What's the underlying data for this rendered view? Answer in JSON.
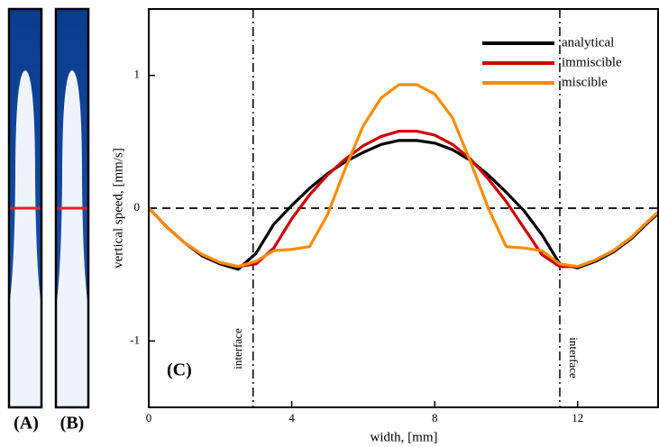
{
  "panels": [
    {
      "label": "(A)"
    },
    {
      "label": "(B)"
    }
  ],
  "chart_data": {
    "type": "line",
    "panel_label": "(C)",
    "x_label": "width, [mm]",
    "y_label": "vertical speed, [mm/s]",
    "x": [
      0,
      0.5,
      1,
      1.5,
      2,
      2.5,
      3,
      3.5,
      4,
      4.5,
      5,
      5.5,
      6,
      6.5,
      7,
      7.5,
      8,
      8.5,
      9,
      9.5,
      10,
      10.5,
      11,
      11.5,
      12,
      12.5,
      13,
      13.5,
      14,
      14.25
    ],
    "series": [
      {
        "name": "analytical",
        "color": "#000000",
        "values": [
          0,
          -0.14,
          -0.26,
          -0.36,
          -0.42,
          -0.46,
          -0.34,
          -0.12,
          0.02,
          0.15,
          0.26,
          0.35,
          0.42,
          0.48,
          0.51,
          0.51,
          0.49,
          0.44,
          0.36,
          0.25,
          0.12,
          -0.02,
          -0.2,
          -0.42,
          -0.45,
          -0.4,
          -0.33,
          -0.23,
          -0.1,
          -0.04
        ]
      },
      {
        "name": "immiscible",
        "color": "#cc0000",
        "values": [
          0,
          -0.14,
          -0.26,
          -0.35,
          -0.41,
          -0.44,
          -0.42,
          -0.3,
          -0.08,
          0.1,
          0.25,
          0.37,
          0.47,
          0.54,
          0.58,
          0.58,
          0.55,
          0.48,
          0.37,
          0.22,
          0.05,
          -0.15,
          -0.35,
          -0.44,
          -0.44,
          -0.39,
          -0.32,
          -0.22,
          -0.09,
          -0.03
        ]
      },
      {
        "name": "miscible",
        "color": "#ff8c00",
        "values": [
          0,
          -0.14,
          -0.26,
          -0.35,
          -0.41,
          -0.44,
          -0.4,
          -0.32,
          -0.31,
          -0.29,
          -0.05,
          0.3,
          0.62,
          0.83,
          0.93,
          0.93,
          0.86,
          0.68,
          0.35,
          0.0,
          -0.29,
          -0.3,
          -0.32,
          -0.42,
          -0.44,
          -0.39,
          -0.32,
          -0.22,
          -0.09,
          -0.03
        ]
      }
    ],
    "xlim": [
      0,
      14.25
    ],
    "ylim": [
      -1.5,
      1.5
    ],
    "xticks": [
      0,
      4,
      8,
      12
    ],
    "yticks": [
      -1,
      0,
      1
    ],
    "horizontal_lines": [
      0
    ],
    "vertical_lines": [
      {
        "x": 2.92,
        "label": "interface"
      },
      {
        "x": 11.5,
        "label": "interface"
      }
    ],
    "legend": "upper right"
  }
}
